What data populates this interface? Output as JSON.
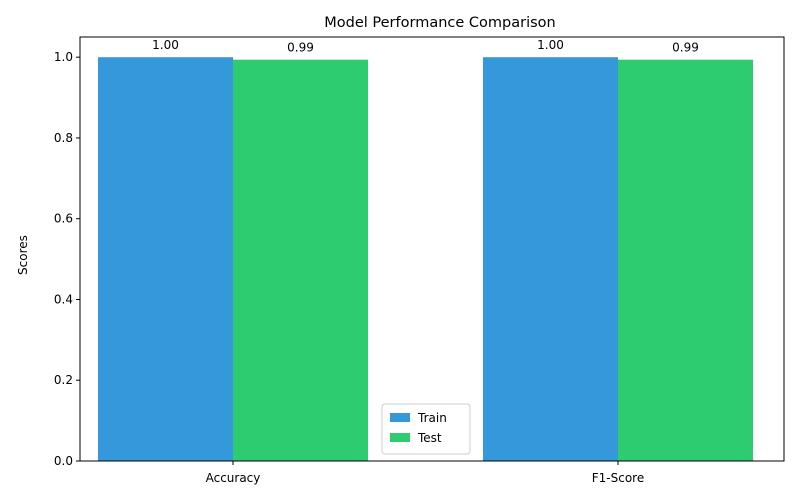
{
  "chart_data": {
    "type": "bar",
    "title": "Model Performance Comparison",
    "xlabel": "",
    "ylabel": "Scores",
    "categories": [
      "Accuracy",
      "F1-Score"
    ],
    "series": [
      {
        "name": "Train",
        "values": [
          1.0,
          1.0
        ],
        "labels": [
          "1.00",
          "1.00"
        ],
        "color": "#3498db"
      },
      {
        "name": "Test",
        "values": [
          0.9938,
          0.9938
        ],
        "labels": [
          "0.99",
          "0.99"
        ],
        "color": "#2ecc71"
      }
    ],
    "ylim": [
      0,
      1.05
    ],
    "yticks": [
      0.0,
      0.2,
      0.4,
      0.6,
      0.8,
      1.0
    ],
    "ytick_labels": [
      "0.0",
      "0.2",
      "0.4",
      "0.6",
      "0.8",
      "1.0"
    ],
    "grid": false,
    "legend_position": "bottom-center"
  }
}
